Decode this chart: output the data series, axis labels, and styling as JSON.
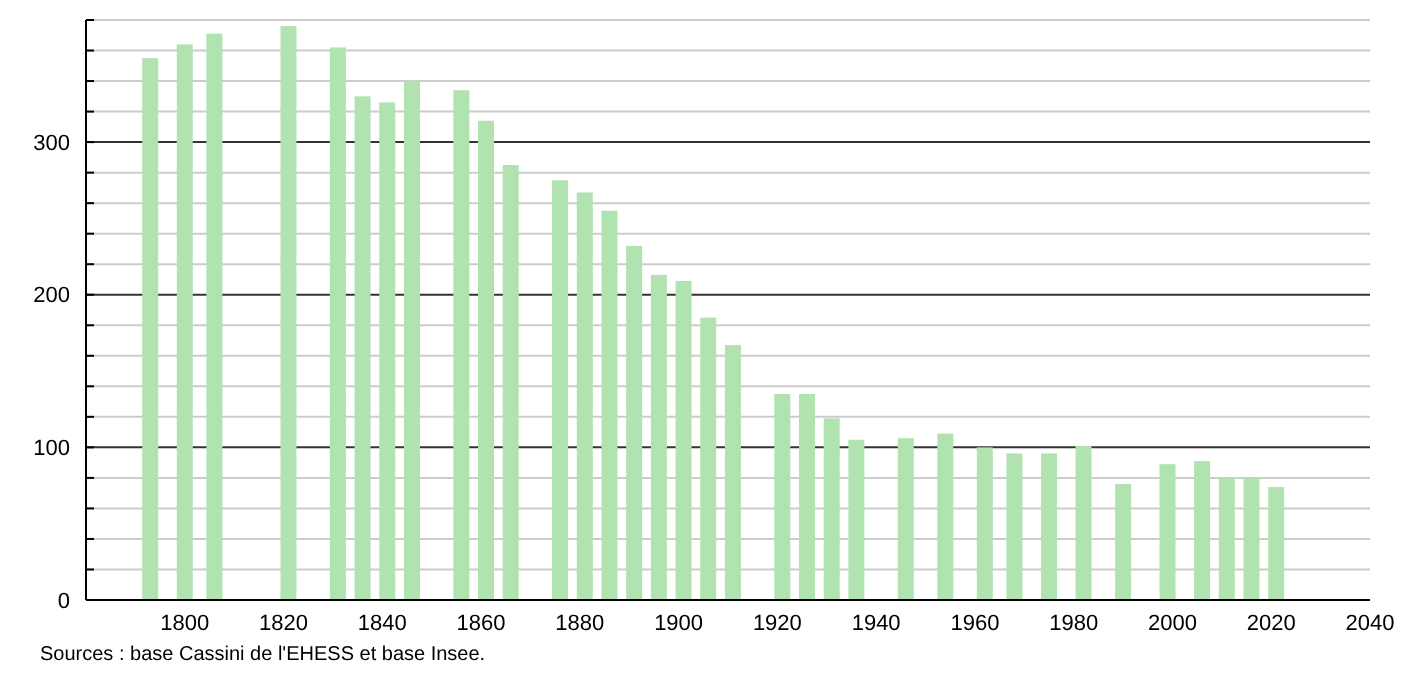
{
  "chart_data": {
    "type": "bar",
    "x": [
      1793,
      1800,
      1806,
      1821,
      1831,
      1836,
      1841,
      1846,
      1856,
      1861,
      1866,
      1876,
      1881,
      1886,
      1891,
      1896,
      1901,
      1906,
      1911,
      1921,
      1926,
      1931,
      1936,
      1946,
      1954,
      1962,
      1968,
      1975,
      1982,
      1990,
      1999,
      2006,
      2011,
      2016,
      2021
    ],
    "values": [
      355,
      364,
      371,
      376,
      362,
      330,
      326,
      340,
      334,
      314,
      285,
      275,
      267,
      255,
      232,
      213,
      209,
      185,
      167,
      135,
      135,
      119,
      105,
      106,
      109,
      100,
      96,
      96,
      101,
      76,
      89,
      91,
      80,
      80,
      74
    ],
    "color": "#b0e3b0",
    "xlim": [
      1780,
      2040
    ],
    "xticks": [
      1800,
      1820,
      1840,
      1860,
      1880,
      1900,
      1920,
      1940,
      1960,
      1980,
      2000,
      2020,
      2040
    ],
    "ylim": [
      0,
      380
    ],
    "yticks": [
      0,
      {
        "value": 20,
        "label": null
      },
      {
        "value": 40,
        "label": null
      },
      {
        "value": 60,
        "label": null
      },
      {
        "value": 80,
        "label": null
      },
      100,
      {
        "value": 120,
        "label": null
      },
      {
        "value": 140,
        "label": null
      },
      {
        "value": 160,
        "label": null
      },
      {
        "value": 180,
        "label": null
      },
      200,
      {
        "value": 220,
        "label": null
      },
      {
        "value": 240,
        "label": null
      },
      {
        "value": 260,
        "label": null
      },
      {
        "value": 280,
        "label": null
      },
      300,
      {
        "value": 320,
        "label": null
      },
      {
        "value": 340,
        "label": null
      },
      {
        "value": 360,
        "label": null
      },
      {
        "value": 380,
        "label": null
      }
    ],
    "grid": "y",
    "annotations": [
      "Sources : base Cassini de l'EHESS et base Insee."
    ]
  }
}
